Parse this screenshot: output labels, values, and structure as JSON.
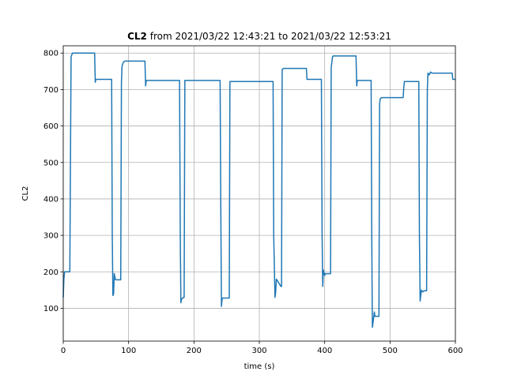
{
  "chart_data": {
    "type": "line",
    "title_bold": "CL2",
    "title_rest": " from 2021/03/22 12:43:21 to 2021/03/22 12:53:21",
    "xlabel": "time (s)",
    "ylabel": "CL2",
    "xlim": [
      0,
      600
    ],
    "ylim": [
      10,
      820
    ],
    "xticks": [
      0,
      100,
      200,
      300,
      400,
      500,
      600
    ],
    "yticks": [
      100,
      200,
      300,
      400,
      500,
      600,
      700,
      800
    ],
    "grid": true,
    "line_color": "#1f77b4",
    "series": [
      {
        "x": [
          0,
          1,
          2,
          4,
          10,
          12,
          14,
          48,
          49,
          50,
          51,
          74,
          75,
          76,
          77,
          78,
          80,
          81,
          88,
          89,
          90,
          92,
          94,
          125,
          126,
          127,
          128,
          178,
          179,
          180,
          181,
          184,
          185,
          186,
          240,
          241,
          242,
          243,
          244,
          254,
          255,
          256,
          320,
          321,
          322,
          324,
          325,
          326,
          333,
          334,
          335,
          337,
          338,
          372,
          373,
          375,
          395,
          396,
          397,
          398,
          400,
          401,
          402,
          409,
          410,
          412,
          413,
          414,
          448,
          449,
          450,
          452,
          471,
          472,
          473,
          474,
          476,
          477,
          478,
          483,
          484,
          485,
          487,
          489,
          520,
          521,
          522,
          524,
          544,
          545,
          546,
          548,
          550,
          552,
          554,
          556,
          557,
          558,
          560,
          562,
          564,
          595,
          596,
          600
        ],
        "y": [
          130,
          180,
          200,
          200,
          200,
          790,
          800,
          800,
          720,
          728,
          728,
          728,
          300,
          135,
          140,
          195,
          178,
          178,
          178,
          720,
          765,
          775,
          778,
          778,
          710,
          725,
          725,
          725,
          300,
          115,
          125,
          130,
          130,
          725,
          725,
          400,
          105,
          125,
          128,
          128,
          722,
          722,
          722,
          722,
          300,
          130,
          145,
          180,
          160,
          160,
          755,
          758,
          758,
          758,
          728,
          728,
          728,
          300,
          160,
          205,
          190,
          195,
          195,
          195,
          760,
          790,
          792,
          792,
          792,
          710,
          725,
          725,
          725,
          300,
          48,
          60,
          90,
          78,
          78,
          78,
          660,
          675,
          678,
          678,
          678,
          705,
          722,
          722,
          722,
          300,
          120,
          150,
          145,
          148,
          148,
          148,
          700,
          745,
          740,
          748,
          745,
          745,
          728,
          728
        ]
      }
    ]
  }
}
